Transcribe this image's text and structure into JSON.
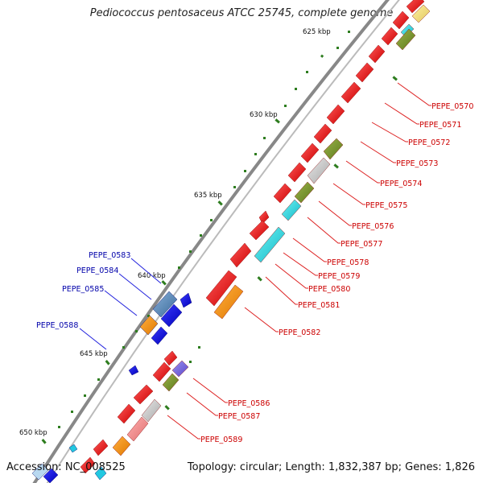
{
  "title": "Pediococcus pentosaceus ATCC 25745, complete genome",
  "accession": "Accession: NC_008525",
  "topology": "Topology: circular; Length: 1,832,387 bp; Genes: 1,826",
  "colors": {
    "backbone": "#888888",
    "tick": "#2e7d1f",
    "forward_gene": "#ee1111",
    "reverse_gene": "#0000ee",
    "label_forward": "#cc0000",
    "label_reverse": "#0000aa"
  },
  "ticks": [
    {
      "label": "625 kbp"
    },
    {
      "label": "630 kbp"
    },
    {
      "label": "635 kbp"
    },
    {
      "label": "640 kbp"
    },
    {
      "label": "645 kbp"
    },
    {
      "label": "650 kbp"
    }
  ],
  "gene_labels_right": [
    "PEPE_0570",
    "PEPE_0571",
    "PEPE_0572",
    "PEPE_0573",
    "PEPE_0574",
    "PEPE_0575",
    "PEPE_0576",
    "PEPE_0577",
    "PEPE_0578",
    "PEPE_0579",
    "PEPE_0580",
    "PEPE_0581",
    "PEPE_0582",
    "PEPE_0586",
    "PEPE_0587",
    "PEPE_0589"
  ],
  "gene_labels_left": [
    "PEPE_0583",
    "PEPE_0584",
    "PEPE_0585",
    "PEPE_0588"
  ]
}
